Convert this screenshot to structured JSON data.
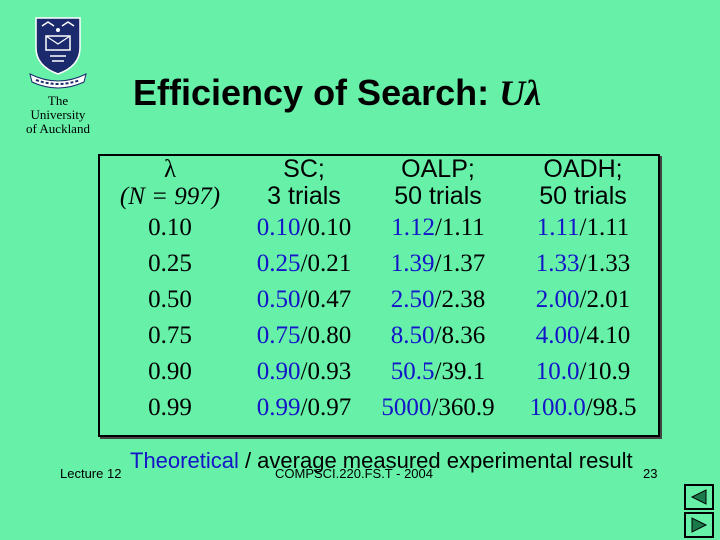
{
  "logo": {
    "line1": "The",
    "line2": "University",
    "line3": "of Auckland"
  },
  "title": {
    "text": "Efficiency of Search: ",
    "symbol": "Uλ"
  },
  "table": {
    "header1": [
      "λ",
      "SC;",
      "OALP;",
      "OADH;"
    ],
    "header2": [
      "(N = 997)",
      "3 trials",
      "50 trials",
      "50 trials"
    ],
    "rows": [
      {
        "lambda": "0.10",
        "sc_theo": "0.10",
        "sc_meas": "/0.10",
        "oalp_theo": "1.12",
        "oalp_meas": "/1.11",
        "oadh_theo": "1.11",
        "oadh_meas": "/1.11"
      },
      {
        "lambda": "0.25",
        "sc_theo": "0.25",
        "sc_meas": "/0.21",
        "oalp_theo": "1.39",
        "oalp_meas": "/1.37",
        "oadh_theo": "1.33",
        "oadh_meas": "/1.33"
      },
      {
        "lambda": "0.50",
        "sc_theo": "0.50",
        "sc_meas": "/0.47",
        "oalp_theo": "2.50",
        "oalp_meas": "/2.38",
        "oadh_theo": "2.00",
        "oadh_meas": "/2.01"
      },
      {
        "lambda": "0.75",
        "sc_theo": "0.75",
        "sc_meas": "/0.80",
        "oalp_theo": "8.50",
        "oalp_meas": "/8.36",
        "oadh_theo": "4.00",
        "oadh_meas": "/4.10"
      },
      {
        "lambda": "0.90",
        "sc_theo": "0.90",
        "sc_meas": "/0.93",
        "oalp_theo": "50.5",
        "oalp_meas": "/39.1",
        "oadh_theo": "10.0",
        "oadh_meas": "/10.9"
      },
      {
        "lambda": "0.99",
        "sc_theo": "0.99",
        "sc_meas": "/0.97",
        "oalp_theo": "5000",
        "oalp_meas": "/360.9",
        "oadh_theo": "100.0",
        "oadh_meas": "/98.5"
      }
    ]
  },
  "caption": {
    "theoretical": "Theoretical",
    "rest": " / average measured experimental result"
  },
  "footer": {
    "left": "Lecture 12",
    "center": "COMPSCI.220.FS.T - 2004",
    "page": "23"
  },
  "nav": {
    "prev_icon": "prev-slide-icon",
    "next_icon": "next-slide-icon"
  },
  "colors": {
    "background": "#66f0a8",
    "theoretical": "#1414c8",
    "crest": "#1a2a6c"
  }
}
